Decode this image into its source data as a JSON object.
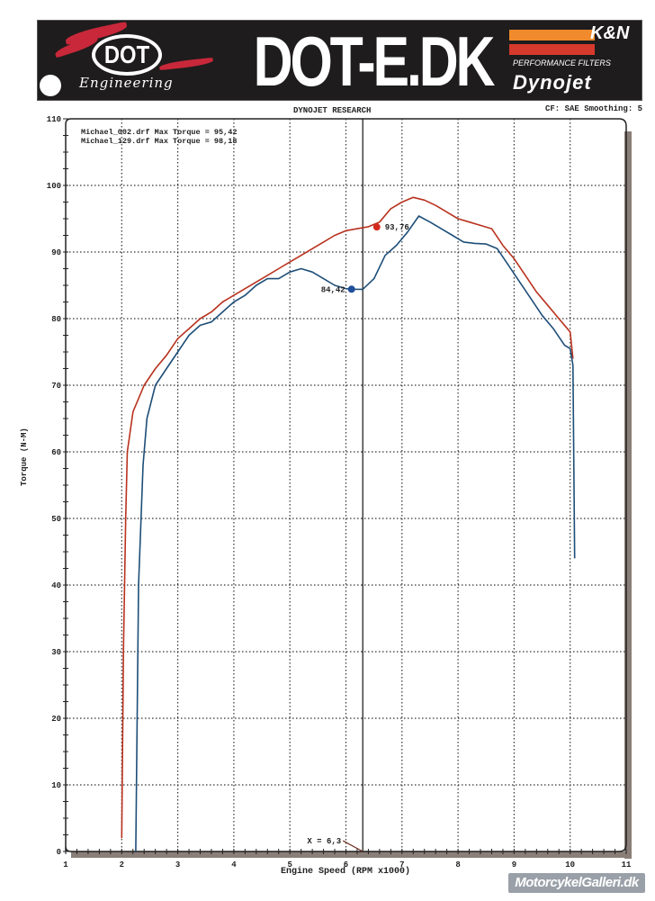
{
  "banner": {
    "main_title": "DOT-E.DK",
    "left_logo": {
      "text": "DOT",
      "subtitle": "Engineering"
    },
    "right_logo": {
      "brand": "K&N",
      "tagline": "PERFORMANCE FILTERS",
      "sub_brand": "Dynojet"
    },
    "colors": {
      "background": "#1e1c1c",
      "red": "#c8283a",
      "orange": "#f08a2c"
    }
  },
  "header": {
    "title": "DYNOJET RESEARCH",
    "settings": "CF: SAE  Smoothing: 5"
  },
  "legend": {
    "lines": [
      "Michael_002.drf Max Torque = 95,42",
      "Michael_129.drf Max Torque = 98,18"
    ]
  },
  "cursor": {
    "label": "X = 6,3",
    "x": 6.3
  },
  "watermark": "MotorcykelGalleri.dk",
  "chart_data": {
    "type": "line",
    "title": "DYNOJET RESEARCH",
    "subtitle": "CF: SAE  Smoothing: 5",
    "xlabel": "Engine Speed (RPM x1000)",
    "ylabel": "Torque (N-M)",
    "xlim": [
      1,
      11
    ],
    "ylim": [
      0,
      110
    ],
    "x_ticks": [
      1,
      2,
      3,
      4,
      5,
      6,
      7,
      8,
      9,
      10,
      11
    ],
    "y_ticks": [
      0,
      10,
      20,
      30,
      40,
      50,
      60,
      70,
      80,
      90,
      100,
      110
    ],
    "grid": true,
    "legend_position": "top-left",
    "annotations": [
      {
        "text": "93,76",
        "x": 6.55,
        "y": 93.76,
        "series": "Michael_129.drf",
        "color": "#d42a1e"
      },
      {
        "text": "84,42",
        "x": 6.1,
        "y": 84.42,
        "series": "Michael_002.drf",
        "color": "#1f4e9a"
      },
      {
        "text": "X = 6,3",
        "x": 6.3,
        "y": 0,
        "type": "vertical-cursor"
      }
    ],
    "series": [
      {
        "name": "Michael_129.drf",
        "max_torque": 98.18,
        "color": "#b8321e",
        "x": [
          2.0,
          2.03,
          2.07,
          2.1,
          2.2,
          2.4,
          2.6,
          2.8,
          3.0,
          3.2,
          3.4,
          3.6,
          3.8,
          4.0,
          4.2,
          4.4,
          4.6,
          4.8,
          5.0,
          5.2,
          5.4,
          5.6,
          5.8,
          6.0,
          6.2,
          6.4,
          6.6,
          6.8,
          7.0,
          7.2,
          7.4,
          7.6,
          7.8,
          8.0,
          8.2,
          8.4,
          8.6,
          8.8,
          9.0,
          9.2,
          9.4,
          9.6,
          9.8,
          10.0,
          10.05
        ],
        "values": [
          2,
          30,
          50,
          60,
          66,
          70,
          72.5,
          74.5,
          77,
          78.5,
          80,
          81,
          82.5,
          83.5,
          84.5,
          85.5,
          86.5,
          87.5,
          88.5,
          89.5,
          90.5,
          91.5,
          92.5,
          93.2,
          93.5,
          93.8,
          94.5,
          96.5,
          97.5,
          98.2,
          97.8,
          97,
          96,
          95,
          94.5,
          94,
          93.5,
          91,
          89,
          86.5,
          84,
          82,
          80,
          78,
          74
        ]
      },
      {
        "name": "Michael_002.drf",
        "max_torque": 95.42,
        "color": "#1e4e78",
        "x": [
          2.25,
          2.3,
          2.38,
          2.45,
          2.6,
          2.8,
          3.0,
          3.2,
          3.4,
          3.6,
          3.8,
          4.0,
          4.2,
          4.4,
          4.6,
          4.8,
          5.0,
          5.2,
          5.4,
          5.6,
          5.8,
          6.0,
          6.1,
          6.3,
          6.5,
          6.7,
          6.9,
          7.1,
          7.3,
          7.5,
          7.7,
          7.9,
          8.1,
          8.3,
          8.5,
          8.7,
          8.9,
          9.1,
          9.3,
          9.5,
          9.7,
          9.9,
          10.0,
          10.05,
          10.08
        ],
        "values": [
          0,
          40,
          58,
          65,
          70,
          72.5,
          75,
          77.5,
          79,
          79.5,
          81,
          82.5,
          83.5,
          85,
          86,
          86,
          87,
          87.5,
          87,
          86,
          85,
          84.5,
          84.42,
          84.4,
          86,
          89.5,
          91,
          93,
          95.4,
          94.5,
          93.5,
          92.5,
          91.5,
          91.3,
          91.2,
          90.5,
          88,
          85.5,
          83,
          80.5,
          78.5,
          76,
          75.5,
          73,
          44
        ]
      }
    ]
  }
}
